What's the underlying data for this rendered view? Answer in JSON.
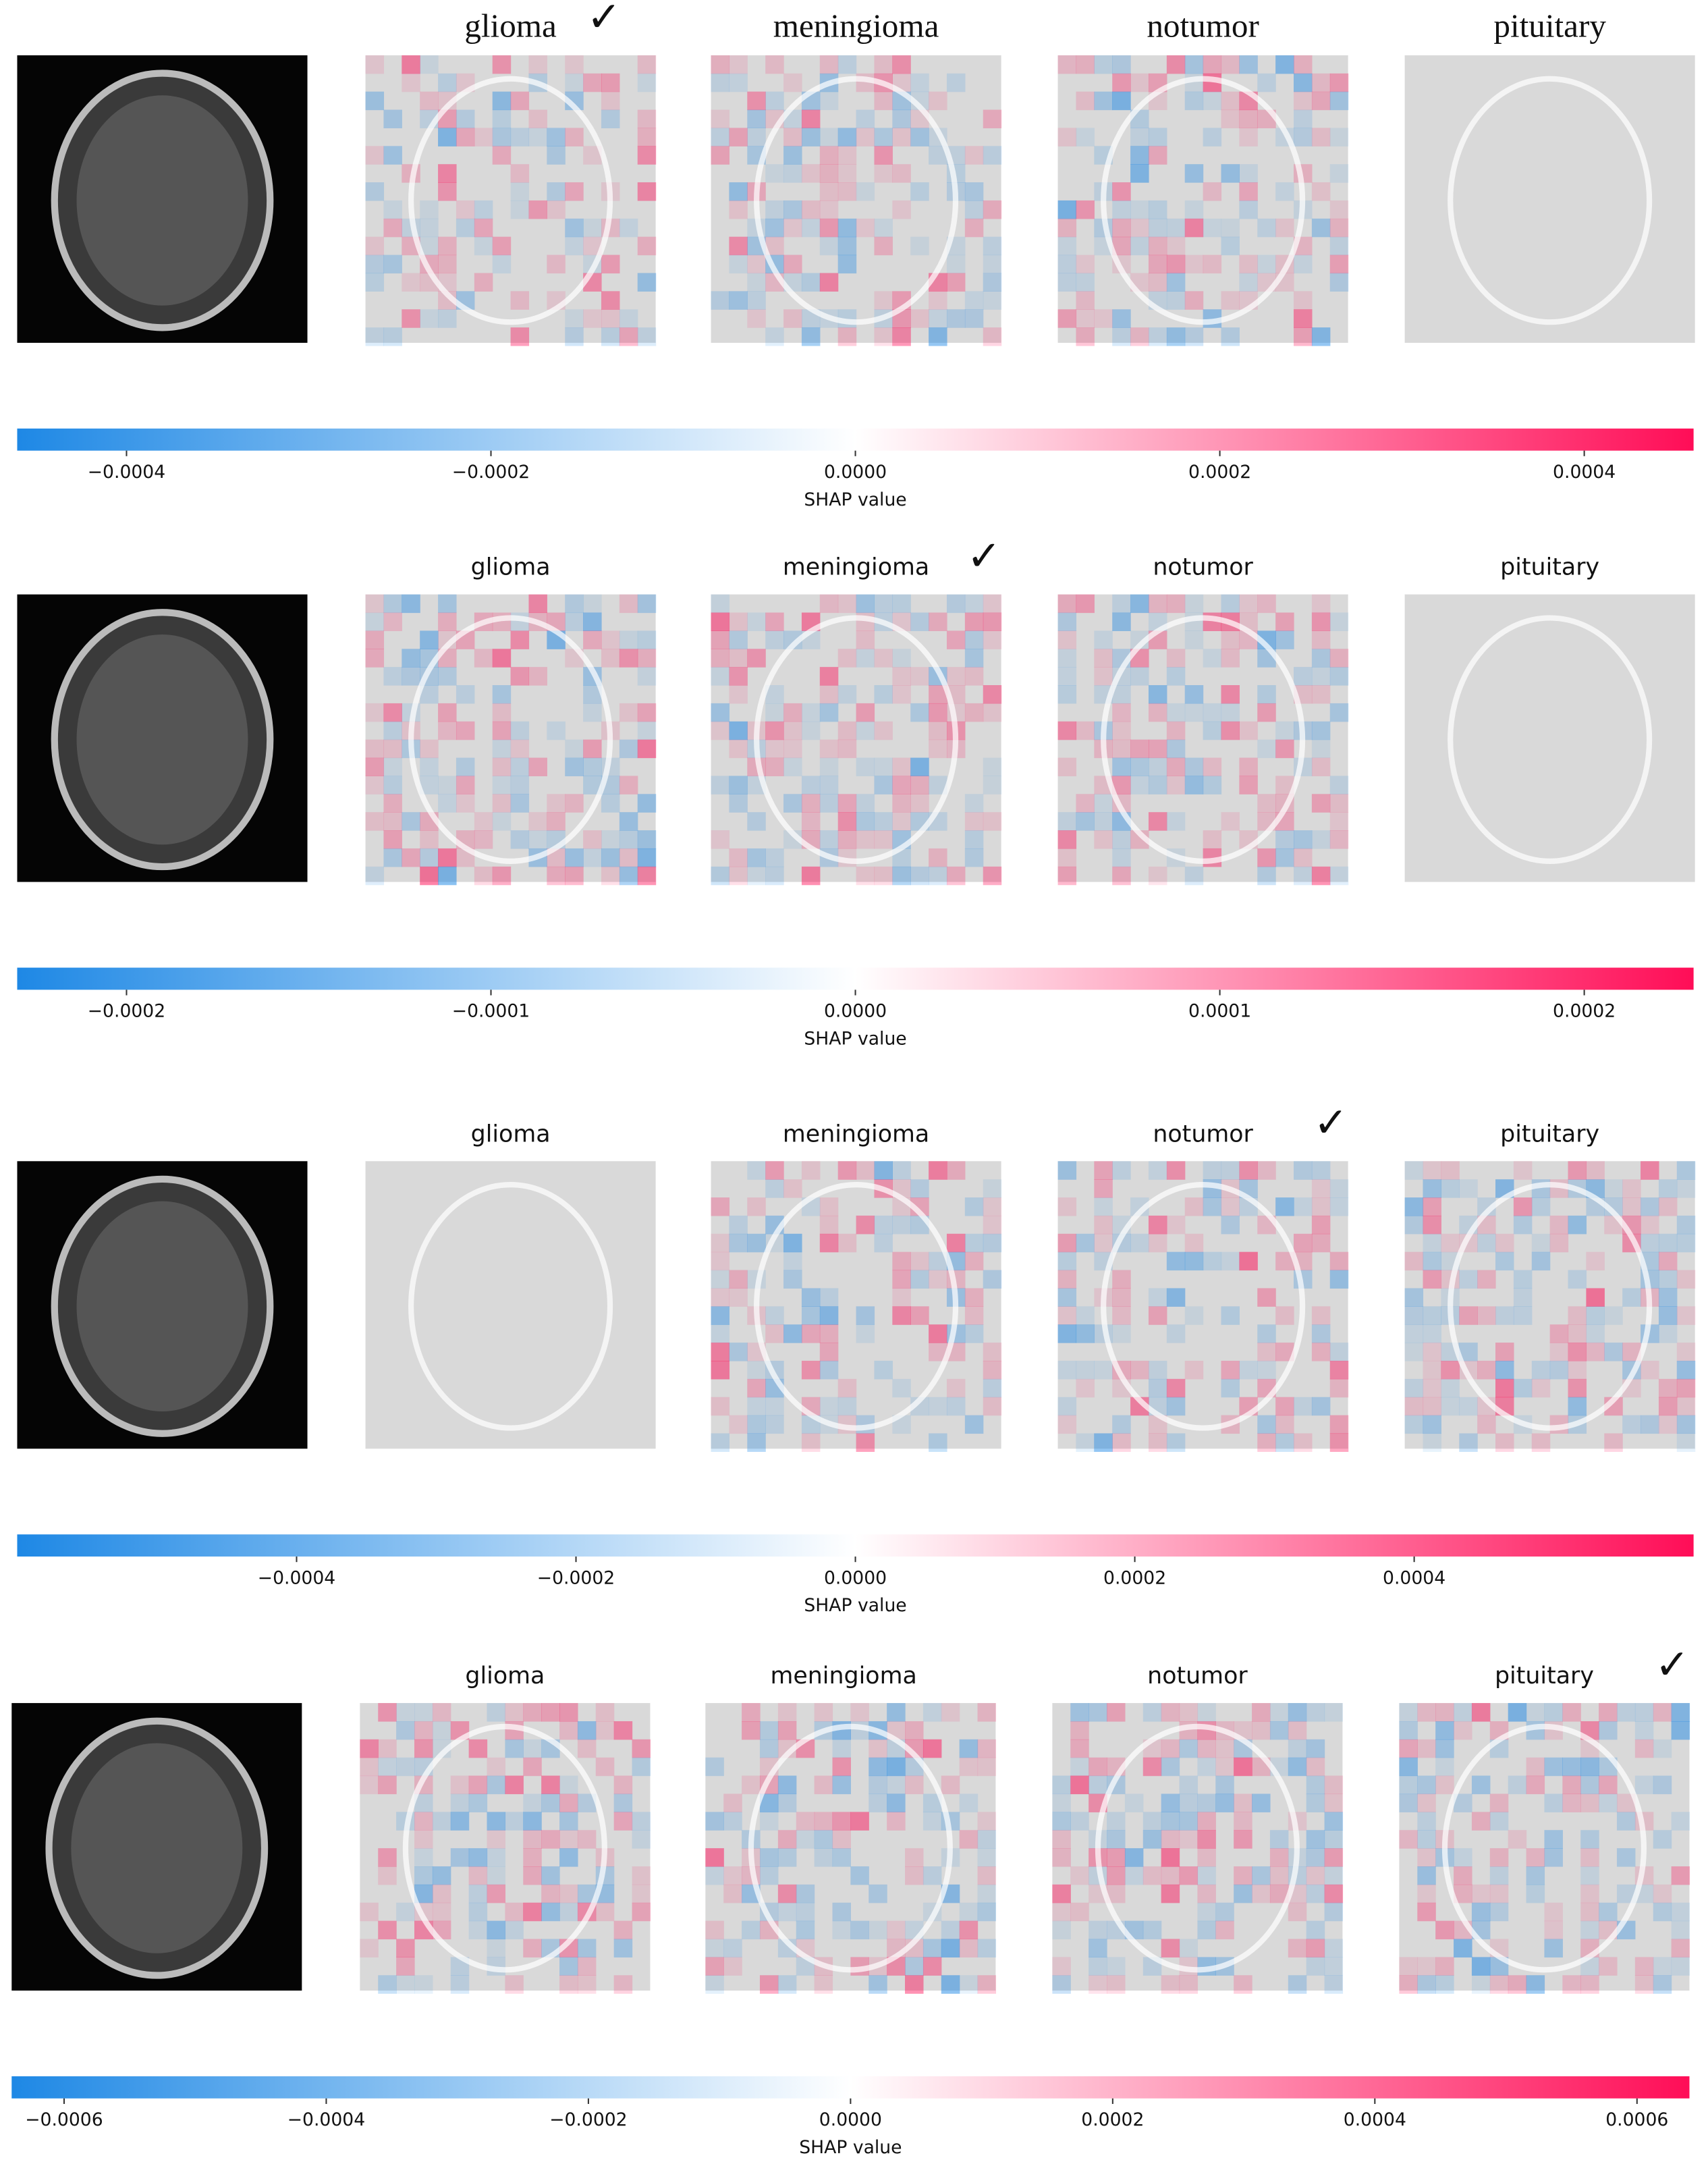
{
  "chart_data": [
    {
      "type": "shap-colorbar",
      "titles": [
        "glioma",
        "meningioma",
        "notumor",
        "pituitary"
      ],
      "check_index": 0,
      "check": "✓",
      "xlabel": "SHAP value",
      "colormap": [
        "#1e88e5",
        "#ffffff",
        "#ff0d57"
      ],
      "xlim": [
        -0.00046,
        0.00046
      ],
      "xticks": [
        {
          "value": -0.0004,
          "label": "−0.0004"
        },
        {
          "value": -0.0002,
          "label": "−0.0002"
        },
        {
          "value": 0,
          "label": "0.0000"
        },
        {
          "value": 0.0002,
          "label": "0.0002"
        },
        {
          "value": 0.0004,
          "label": "0.0004"
        }
      ]
    },
    {
      "type": "shap-colorbar",
      "titles": [
        "glioma",
        "meningioma",
        "notumor",
        "pituitary"
      ],
      "check_index": 1,
      "check": "✓",
      "xlabel": "SHAP value",
      "colormap": [
        "#1e88e5",
        "#ffffff",
        "#ff0d57"
      ],
      "xlim": [
        -0.00023,
        0.00023
      ],
      "xticks": [
        {
          "value": -0.0002,
          "label": "−0.0002"
        },
        {
          "value": -0.0001,
          "label": "−0.0001"
        },
        {
          "value": 0,
          "label": "0.0000"
        },
        {
          "value": 0.0001,
          "label": "0.0001"
        },
        {
          "value": 0.0002,
          "label": "0.0002"
        }
      ]
    },
    {
      "type": "shap-colorbar",
      "titles": [
        "glioma",
        "meningioma",
        "notumor",
        "pituitary"
      ],
      "check_index": 2,
      "check": "✓",
      "xlabel": "SHAP value",
      "colormap": [
        "#1e88e5",
        "#ffffff",
        "#ff0d57"
      ],
      "xlim": [
        -0.0006,
        0.0006
      ],
      "xticks": [
        {
          "value": -0.0004,
          "label": "−0.0004"
        },
        {
          "value": -0.0002,
          "label": "−0.0002"
        },
        {
          "value": 0,
          "label": "0.0000"
        },
        {
          "value": 0.0002,
          "label": "0.0002"
        },
        {
          "value": 0.0004,
          "label": "0.0004"
        }
      ]
    },
    {
      "type": "shap-colorbar",
      "titles": [
        "glioma",
        "meningioma",
        "notumor",
        "pituitary"
      ],
      "check_index": 3,
      "check": "✓",
      "xlabel": "SHAP value",
      "colormap": [
        "#1e88e5",
        "#ffffff",
        "#ff0d57"
      ],
      "xlim": [
        -0.00064,
        0.00064
      ],
      "xticks": [
        {
          "value": -0.0006,
          "label": "−0.0006"
        },
        {
          "value": -0.0004,
          "label": "−0.0004"
        },
        {
          "value": -0.0002,
          "label": "−0.0002"
        },
        {
          "value": 0,
          "label": "0.0000"
        },
        {
          "value": 0.0002,
          "label": "0.0002"
        },
        {
          "value": 0.0004,
          "label": "0.0004"
        },
        {
          "value": 0.0006,
          "label": "0.0006"
        }
      ]
    }
  ]
}
